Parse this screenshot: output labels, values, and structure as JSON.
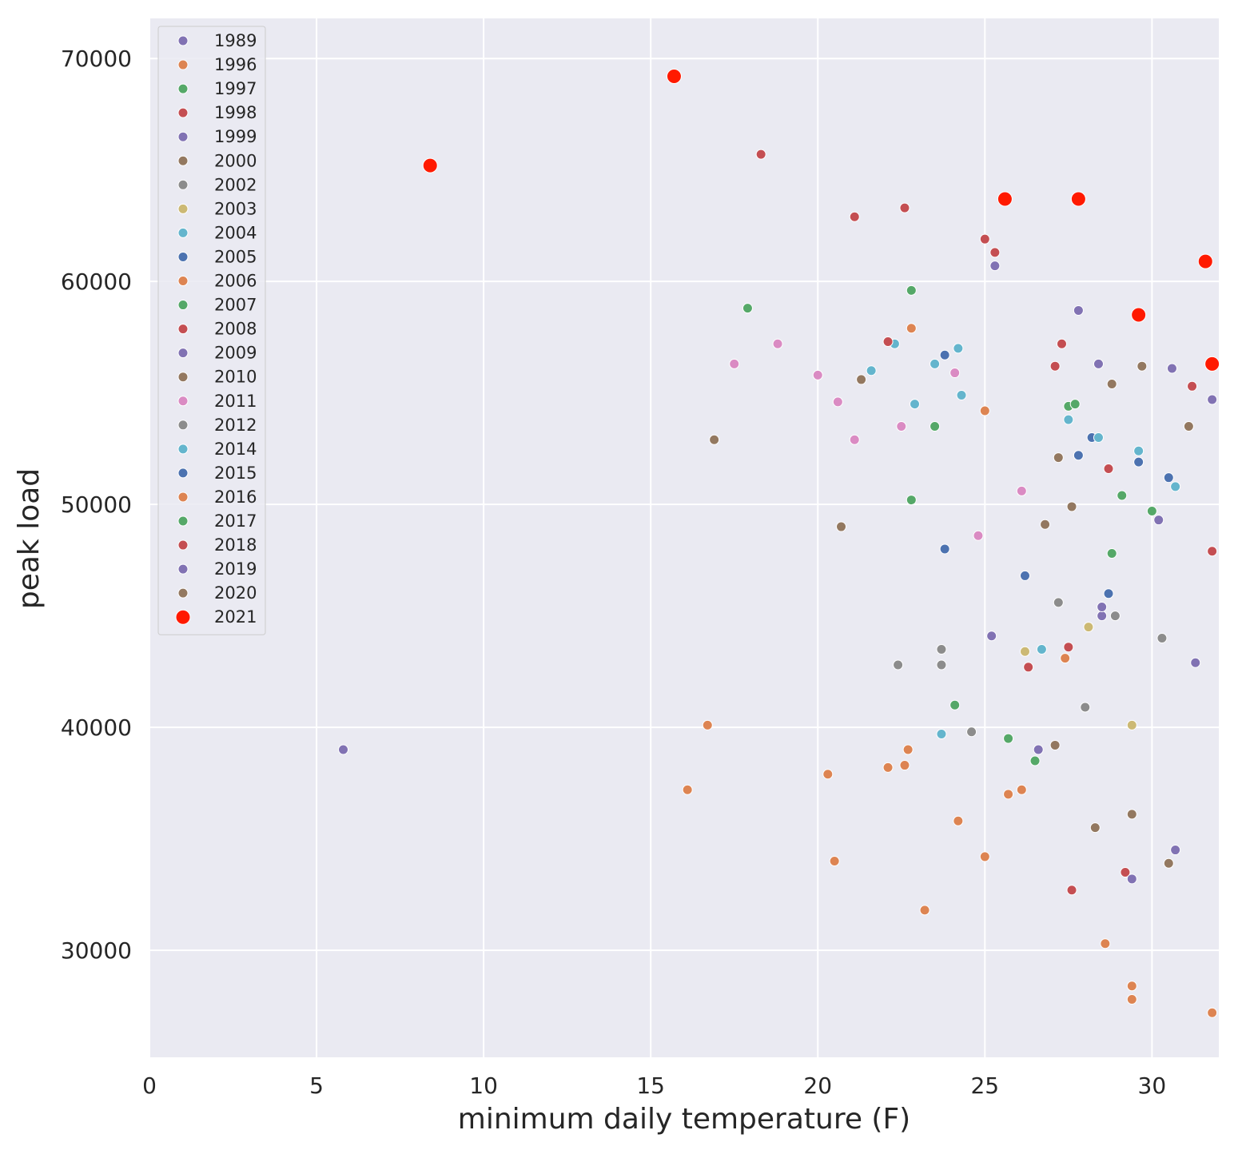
{
  "chart_data": {
    "type": "scatter",
    "title": "",
    "xlabel": "minimum daily temperature (F)",
    "ylabel": "peak load",
    "xlim": [
      0,
      32
    ],
    "ylim": [
      25200,
      71800
    ],
    "x_ticks": [
      0,
      5,
      10,
      15,
      20,
      25,
      30
    ],
    "y_ticks": [
      30000,
      40000,
      50000,
      60000,
      70000
    ],
    "x_tick_labels": [
      "0",
      "5",
      "10",
      "15",
      "20",
      "25",
      "30"
    ],
    "y_tick_labels": [
      "30000",
      "40000",
      "50000",
      "60000",
      "70000"
    ],
    "grid": true,
    "legend_position": "top-left",
    "background": "#eaeaf2",
    "series": [
      {
        "name": "1989",
        "color": "#8172b3",
        "points": [
          [
            5.8,
            39000
          ],
          [
            25.3,
            60700
          ],
          [
            27.8,
            58700
          ]
        ]
      },
      {
        "name": "1996",
        "color": "#dd8452",
        "points": [
          [
            16.7,
            40100
          ],
          [
            16.1,
            37200
          ],
          [
            22.8,
            57900
          ],
          [
            25.0,
            54200
          ],
          [
            28.6,
            30300
          ],
          [
            31.8,
            27200
          ]
        ]
      },
      {
        "name": "1997",
        "color": "#55a868",
        "points": [
          [
            17.9,
            58800
          ],
          [
            22.8,
            59600
          ],
          [
            24.1,
            41000
          ],
          [
            27.5,
            54400
          ]
        ]
      },
      {
        "name": "1998",
        "color": "#c44e52",
        "points": [
          [
            18.3,
            65700
          ],
          [
            21.1,
            62900
          ],
          [
            22.6,
            63300
          ],
          [
            25.0,
            61900
          ],
          [
            25.3,
            61300
          ],
          [
            27.3,
            57200
          ]
        ]
      },
      {
        "name": "1999",
        "color": "#8172b3",
        "points": [
          [
            28.4,
            56300
          ],
          [
            30.6,
            56100
          ],
          [
            31.8,
            54700
          ]
        ]
      },
      {
        "name": "2000",
        "color": "#937860",
        "points": [
          [
            16.9,
            52900
          ],
          [
            20.7,
            49000
          ],
          [
            21.3,
            55600
          ],
          [
            28.8,
            55400
          ]
        ]
      },
      {
        "name": "2002",
        "color": "#8c8c8c",
        "points": [
          [
            22.4,
            42800
          ],
          [
            23.7,
            43500
          ],
          [
            23.7,
            42800
          ],
          [
            24.6,
            39800
          ]
        ]
      },
      {
        "name": "2003",
        "color": "#ccb974",
        "points": [
          [
            26.2,
            43400
          ],
          [
            28.1,
            44500
          ],
          [
            29.4,
            40100
          ]
        ]
      },
      {
        "name": "2004",
        "color": "#64b5cd",
        "points": [
          [
            21.6,
            56000
          ],
          [
            22.3,
            57200
          ],
          [
            23.5,
            56300
          ],
          [
            24.2,
            57000
          ],
          [
            24.3,
            54900
          ],
          [
            22.9,
            54500
          ]
        ]
      },
      {
        "name": "2005",
        "color": "#4c72b0",
        "points": [
          [
            23.8,
            56700
          ],
          [
            23.8,
            48000
          ],
          [
            26.2,
            46800
          ],
          [
            28.2,
            53000
          ]
        ]
      },
      {
        "name": "2006",
        "color": "#dd8452",
        "points": [
          [
            20.3,
            37900
          ],
          [
            20.5,
            34000
          ],
          [
            22.1,
            38200
          ],
          [
            22.6,
            38300
          ],
          [
            22.7,
            39000
          ],
          [
            23.2,
            31800
          ]
        ]
      },
      {
        "name": "2007",
        "color": "#55a868",
        "points": [
          [
            23.5,
            53500
          ],
          [
            22.8,
            50200
          ],
          [
            25.7,
            39500
          ],
          [
            27.7,
            54500
          ]
        ]
      },
      {
        "name": "2008",
        "color": "#c44e52",
        "points": [
          [
            22.1,
            57300
          ],
          [
            27.1,
            56200
          ],
          [
            28.7,
            51600
          ],
          [
            31.2,
            55300
          ]
        ]
      },
      {
        "name": "2009",
        "color": "#8172b3",
        "points": [
          [
            25.2,
            44100
          ],
          [
            26.6,
            39000
          ],
          [
            28.5,
            45000
          ],
          [
            30.2,
            49300
          ]
        ]
      },
      {
        "name": "2010",
        "color": "#937860",
        "points": [
          [
            26.8,
            49100
          ],
          [
            27.6,
            49900
          ],
          [
            27.2,
            52100
          ],
          [
            29.7,
            56200
          ]
        ]
      },
      {
        "name": "2011",
        "color": "#da8bc3",
        "points": [
          [
            17.5,
            56300
          ],
          [
            18.8,
            57200
          ],
          [
            20.0,
            55800
          ],
          [
            20.6,
            54600
          ],
          [
            21.1,
            52900
          ],
          [
            22.5,
            53500
          ],
          [
            24.1,
            55900
          ],
          [
            24.8,
            48600
          ],
          [
            26.1,
            50600
          ]
        ]
      },
      {
        "name": "2012",
        "color": "#8c8c8c",
        "points": [
          [
            27.2,
            45600
          ],
          [
            28.0,
            40900
          ],
          [
            28.9,
            45000
          ],
          [
            30.3,
            44000
          ]
        ]
      },
      {
        "name": "2014",
        "color": "#64b5cd",
        "points": [
          [
            27.5,
            53800
          ],
          [
            28.4,
            53000
          ],
          [
            29.6,
            52400
          ],
          [
            30.7,
            50800
          ],
          [
            23.7,
            39700
          ],
          [
            26.7,
            43500
          ]
        ]
      },
      {
        "name": "2015",
        "color": "#4c72b0",
        "points": [
          [
            27.8,
            52200
          ],
          [
            29.6,
            51900
          ],
          [
            30.5,
            51200
          ],
          [
            28.7,
            46000
          ]
        ]
      },
      {
        "name": "2016",
        "color": "#dd8452",
        "points": [
          [
            24.2,
            35800
          ],
          [
            25.0,
            34200
          ],
          [
            25.7,
            37000
          ],
          [
            26.1,
            37200
          ],
          [
            27.4,
            43100
          ],
          [
            29.4,
            28400
          ],
          [
            29.4,
            27800
          ]
        ]
      },
      {
        "name": "2017",
        "color": "#55a868",
        "points": [
          [
            28.8,
            47800
          ],
          [
            29.1,
            50400
          ],
          [
            30.0,
            49700
          ],
          [
            26.5,
            38500
          ]
        ]
      },
      {
        "name": "2018",
        "color": "#c44e52",
        "points": [
          [
            26.3,
            42700
          ],
          [
            27.5,
            43600
          ],
          [
            27.6,
            32700
          ],
          [
            29.2,
            33500
          ],
          [
            31.8,
            47900
          ]
        ]
      },
      {
        "name": "2019",
        "color": "#8172b3",
        "points": [
          [
            28.5,
            45400
          ],
          [
            29.4,
            33200
          ],
          [
            30.7,
            34500
          ],
          [
            31.3,
            42900
          ]
        ]
      },
      {
        "name": "2020",
        "color": "#937860",
        "points": [
          [
            27.1,
            39200
          ],
          [
            28.3,
            35500
          ],
          [
            29.4,
            36100
          ],
          [
            30.5,
            33900
          ],
          [
            31.1,
            53500
          ]
        ]
      },
      {
        "name": "2021",
        "color": "#ff1a00",
        "size": "large",
        "points": [
          [
            8.4,
            65200
          ],
          [
            15.7,
            69200
          ],
          [
            25.6,
            63700
          ],
          [
            27.8,
            63700
          ],
          [
            29.6,
            58500
          ],
          [
            31.6,
            60900
          ],
          [
            31.8,
            56300
          ]
        ]
      }
    ]
  }
}
